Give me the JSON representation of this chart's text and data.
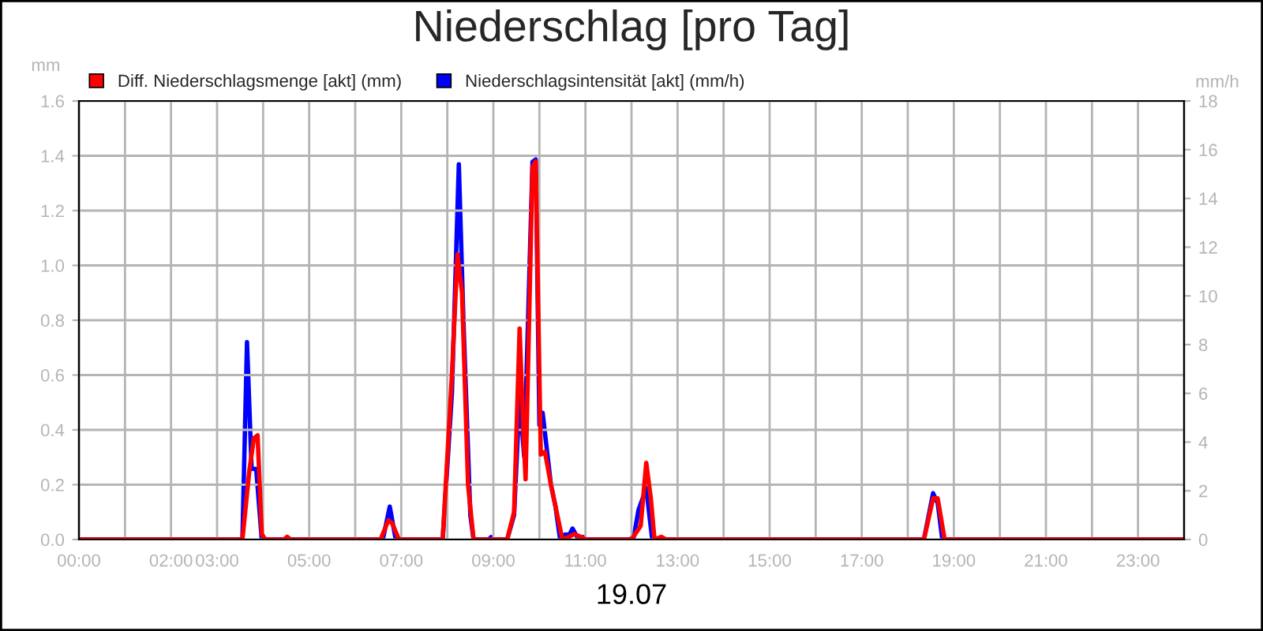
{
  "chart_data": {
    "type": "line",
    "title": "Niederschlag [pro Tag]",
    "xlabel": "19.07",
    "ylabel": "mm",
    "y2label": "mm/h",
    "series": [
      {
        "name": "Diff. Niederschlagsmenge [akt] (mm)",
        "color": "#ff0000",
        "axis": "y",
        "x": [
          0,
          3.55,
          3.7,
          3.8,
          3.88,
          3.97,
          4.05,
          4.45,
          4.52,
          4.6,
          6.55,
          6.72,
          6.8,
          6.95,
          7.9,
          8.1,
          8.22,
          8.32,
          8.45,
          8.57,
          9.3,
          9.45,
          9.57,
          9.65,
          9.7,
          9.85,
          9.92,
          10.03,
          10.12,
          10.25,
          10.35,
          10.5,
          10.65,
          10.75,
          10.9,
          11.0,
          12.0,
          12.2,
          12.32,
          12.42,
          12.5,
          12.65,
          12.75,
          18.35,
          18.55,
          18.65,
          18.8,
          24
        ],
        "values": [
          0,
          0,
          0.25,
          0.37,
          0.38,
          0.02,
          0,
          0,
          0.01,
          0,
          0,
          0.07,
          0.06,
          0,
          0,
          0.6,
          1.04,
          0.9,
          0.2,
          0,
          0,
          0.1,
          0.77,
          0.4,
          0.22,
          1.36,
          1.38,
          0.31,
          0.32,
          0.2,
          0.12,
          0,
          0.01,
          0.02,
          0.01,
          0,
          0,
          0.05,
          0.28,
          0.15,
          0,
          0.01,
          0,
          0,
          0.15,
          0.15,
          0,
          0
        ]
      },
      {
        "name": "Niederschlagsintensität [akt] (mm/h)",
        "color": "#0000ff",
        "axis": "y2",
        "x": [
          0,
          3.55,
          3.65,
          3.75,
          3.85,
          3.97,
          6.6,
          6.75,
          6.88,
          7.9,
          8.1,
          8.25,
          8.35,
          8.5,
          8.57,
          8.9,
          8.95,
          9.0,
          9.3,
          9.45,
          9.57,
          9.67,
          9.85,
          9.92,
          10.0,
          10.07,
          10.25,
          10.35,
          10.45,
          10.55,
          10.65,
          10.72,
          10.85,
          10.95,
          11.0,
          11.95,
          12.05,
          12.15,
          12.32,
          12.45,
          18.35,
          18.55,
          18.65,
          18.75,
          24
        ],
        "values": [
          0,
          0,
          8.1,
          2.9,
          2.9,
          0,
          0,
          1.35,
          0,
          0,
          6,
          15.4,
          9,
          1,
          0,
          0,
          0.1,
          0,
          0,
          1,
          5.85,
          3.4,
          15.5,
          15.6,
          4.7,
          5.2,
          2.25,
          1.35,
          0,
          0.2,
          0.2,
          0.45,
          0,
          0.1,
          0,
          0,
          0.1,
          1.2,
          2.1,
          0,
          0,
          1.9,
          1.5,
          0,
          0
        ]
      }
    ],
    "xlim": [
      0,
      24
    ],
    "xticks": [
      {
        "value": 0,
        "label": "00:00"
      },
      {
        "value": 1,
        "label": null
      },
      {
        "value": 2,
        "label": "02:00"
      },
      {
        "value": 3,
        "label": "03:00"
      },
      {
        "value": 4,
        "label": null
      },
      {
        "value": 5,
        "label": "05:00"
      },
      {
        "value": 6,
        "label": null
      },
      {
        "value": 7,
        "label": "07:00"
      },
      {
        "value": 8,
        "label": null
      },
      {
        "value": 9,
        "label": "09:00"
      },
      {
        "value": 10,
        "label": null
      },
      {
        "value": 11,
        "label": "11:00"
      },
      {
        "value": 12,
        "label": null
      },
      {
        "value": 13,
        "label": "13:00"
      },
      {
        "value": 14,
        "label": null
      },
      {
        "value": 15,
        "label": "15:00"
      },
      {
        "value": 16,
        "label": null
      },
      {
        "value": 17,
        "label": "17:00"
      },
      {
        "value": 18,
        "label": null
      },
      {
        "value": 19,
        "label": "19:00"
      },
      {
        "value": 20,
        "label": null
      },
      {
        "value": 21,
        "label": "21:00"
      },
      {
        "value": 22,
        "label": null
      },
      {
        "value": 23,
        "label": "23:00"
      }
    ],
    "ylim": [
      0,
      1.6
    ],
    "yticks": [
      {
        "value": 0,
        "label": "0.0"
      },
      0.2,
      0.4,
      0.6,
      0.8,
      {
        "value": 1,
        "label": "1.0"
      },
      1.2,
      1.4,
      1.6
    ],
    "y2lim": [
      0,
      18
    ],
    "y2ticks": [
      0,
      2,
      4,
      6,
      8,
      10,
      12,
      14,
      16,
      18
    ],
    "grid": true,
    "legend": "top left",
    "line_style": "solid",
    "marker": "none"
  }
}
